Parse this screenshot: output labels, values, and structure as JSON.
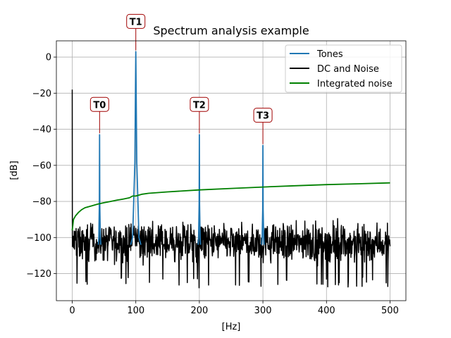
{
  "chart_data": {
    "type": "line",
    "title": "Spectrum analysis example",
    "xlabel": "[Hz]",
    "ylabel": "[dB]",
    "xlim": [
      -25,
      525
    ],
    "ylim": [
      -135,
      9
    ],
    "xticks": [
      0,
      100,
      200,
      300,
      400,
      500
    ],
    "xtick_labels": [
      "0",
      "100",
      "200",
      "300",
      "400",
      "500"
    ],
    "yticks": [
      0,
      -20,
      -40,
      -60,
      -80,
      -100,
      -120
    ],
    "ytick_labels": [
      "0",
      "−20",
      "−40",
      "−60",
      "−80",
      "−100",
      "−120"
    ],
    "grid": true,
    "legend_position": "upper right",
    "series": [
      {
        "name": "Tones",
        "color": "#1f77b4",
        "peaks": [
          {
            "x": 43,
            "y": -43
          },
          {
            "x": 100,
            "y": 3
          },
          {
            "x": 200,
            "y": -43
          },
          {
            "x": 300,
            "y": -49
          }
        ]
      },
      {
        "name": "DC and Noise",
        "color": "#000000",
        "dc_point": {
          "x": 0,
          "y": -18
        },
        "noise_range": [
          -125,
          -90
        ],
        "x_range": [
          0,
          500
        ]
      },
      {
        "name": "Integrated noise",
        "color": "#008000",
        "x": [
          0,
          2,
          5,
          10,
          15,
          20,
          30,
          40,
          50,
          60,
          70,
          80,
          90,
          95,
          100,
          110,
          120,
          150,
          200,
          250,
          300,
          350,
          400,
          450,
          500
        ],
        "y": [
          -96,
          -90,
          -88,
          -86,
          -84.5,
          -83.5,
          -82.5,
          -81.5,
          -80.7,
          -80,
          -79.3,
          -78.7,
          -78,
          -77,
          -77,
          -76,
          -75.5,
          -74.7,
          -73.6,
          -72.8,
          -72,
          -71.3,
          -70.7,
          -70.2,
          -69.7
        ]
      }
    ],
    "annotations": [
      {
        "label": "T0",
        "x": 43,
        "y": -43
      },
      {
        "label": "T1",
        "x": 100,
        "y": 3
      },
      {
        "label": "T2",
        "x": 200,
        "y": -43
      },
      {
        "label": "T3",
        "x": 300,
        "y": -49
      }
    ]
  }
}
